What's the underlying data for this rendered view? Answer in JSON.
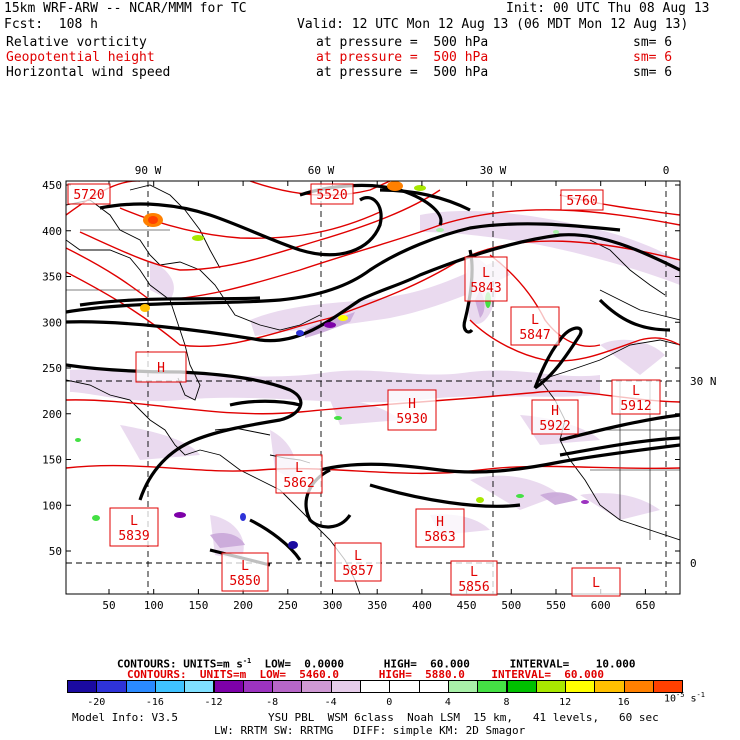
{
  "header": {
    "model": "15km WRF-ARW -- NCAR/MMM for TC",
    "init": "Init: 00 UTC Thu 08 Aug 13",
    "fcst": "Fcst:  108 h",
    "valid": "Valid: 12 UTC Mon 12 Aug 13 (06 MDT Mon 12 Aug 13)",
    "fields": [
      {
        "name": "Relative vorticity",
        "pressure": "at pressure =  500 hPa",
        "sm": "sm= 6",
        "color": "#000000"
      },
      {
        "name": "Geopotential height",
        "pressure": "at pressure =  500 hPa",
        "sm": "sm= 6",
        "color": "#e00000"
      },
      {
        "name": "Horizontal wind speed",
        "pressure": "at pressure =  500 hPa",
        "sm": "sm= 6",
        "color": "#000000"
      }
    ]
  },
  "map": {
    "top_lon_labels": [
      "90 W",
      "60 W",
      "30 W",
      "0"
    ],
    "right_lat_labels": [
      "30 N",
      "0"
    ],
    "y_ticks": [
      "50",
      "100",
      "150",
      "200",
      "250",
      "300",
      "350",
      "400",
      "450"
    ],
    "x_ticks": [
      "50",
      "100",
      "150",
      "200",
      "250",
      "300",
      "350",
      "400",
      "450",
      "500",
      "550",
      "600",
      "650"
    ],
    "height_labels": [
      {
        "letter": "",
        "value": "5720"
      },
      {
        "letter": "",
        "value": "5520"
      },
      {
        "letter": "",
        "value": "5760"
      },
      {
        "letter": "L",
        "value": "5843"
      },
      {
        "letter": "L",
        "value": "5847"
      },
      {
        "letter": "H",
        "value": ""
      },
      {
        "letter": "H",
        "value": "5930"
      },
      {
        "letter": "H",
        "value": "5922"
      },
      {
        "letter": "L",
        "value": "5912"
      },
      {
        "letter": "L",
        "value": "5862"
      },
      {
        "letter": "L",
        "value": "5839"
      },
      {
        "letter": "H",
        "value": "5863"
      },
      {
        "letter": "L",
        "value": "5857"
      },
      {
        "letter": "L",
        "value": "5850"
      },
      {
        "letter": "L",
        "value": "5856"
      },
      {
        "letter": "L",
        "value": ""
      }
    ]
  },
  "contours": {
    "line1": {
      "label": "CONTOURS:",
      "units": "UNITS=m s",
      "unit_exp": "-1",
      "low_label": "LOW=",
      "low": "0.0000",
      "high_label": "HIGH=",
      "high": "60.000",
      "interval_label": "INTERVAL=",
      "interval": "10.000"
    },
    "line2": {
      "label": "CONTOURS:",
      "units": "UNITS=m",
      "low_label": "LOW=",
      "low": "5460.0",
      "high_label": "HIGH=",
      "high": "5880.0",
      "interval_label": "INTERVAL=",
      "interval": "60.000"
    }
  },
  "colorbar": {
    "colors": [
      "#1a0aa0",
      "#2e33d8",
      "#2a8aff",
      "#3fc2ff",
      "#7fe0ff",
      "#7d00a8",
      "#9c33c0",
      "#b766c8",
      "#cf99d4",
      "#e6ccea",
      "#ffffff",
      "#ffffff",
      "#ffffff",
      "#a8f0a8",
      "#44e044",
      "#00c000",
      "#a8e800",
      "#ffff00",
      "#ffc000",
      "#ff8000",
      "#ff4000"
    ],
    "tick_labels": [
      "-20",
      "-16",
      "-12",
      "-8",
      "-4",
      "0",
      "4",
      "8",
      "12",
      "16"
    ],
    "units_base": "10",
    "units_exp": "-5",
    "units_tail": "s",
    "units_tail_exp": "-1"
  },
  "footer": {
    "model_info": "Model Info: V3.5",
    "physics_1": "YSU PBL  WSM 6class  Noah LSM  15 km,   41 levels,   60 sec",
    "physics_2": "LW: RRTM SW: RRTMG   DIFF: simple KM: 2D Smagor"
  }
}
